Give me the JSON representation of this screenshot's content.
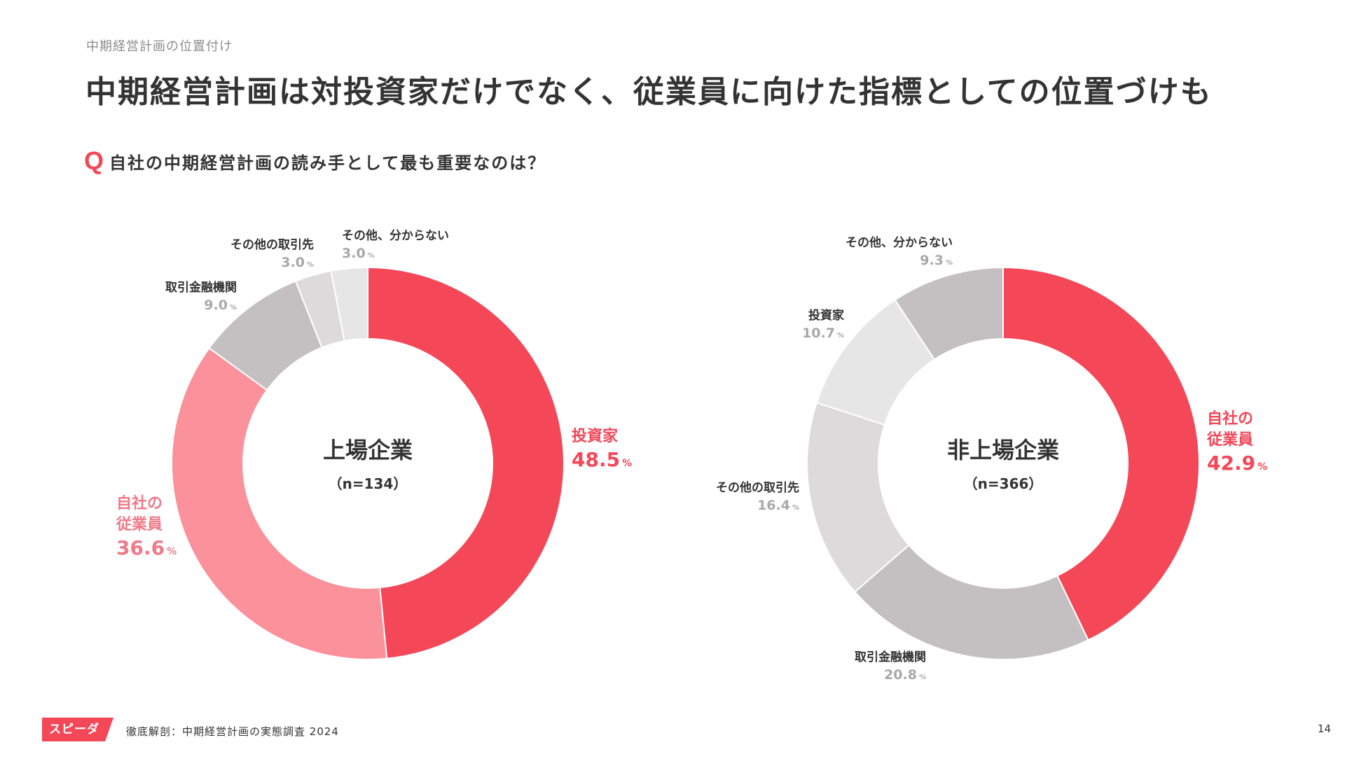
{
  "header": {
    "breadcrumb": "中期経営計画の位置付け",
    "title": "中期経営計画は対投資家だけでなく、従業員に向けた指標としての位置づけも"
  },
  "question": {
    "mark": "Q",
    "text": "自社の中期経営計画の読み手として最も重要なのは？"
  },
  "colors": {
    "primary_red": "#f44758",
    "light_red": "#fa919b",
    "gray_dark": "#c4c0c1",
    "gray_mid": "#dcdadb",
    "gray_light": "#e6e6e6",
    "label_gray": "#a8a8a8"
  },
  "chart_data": [
    {
      "type": "pie",
      "title": "上場企業",
      "subtitle": "（n=134）",
      "unit": "%",
      "slices": [
        {
          "label": "投資家",
          "value": 48.5,
          "color": "#f44758",
          "label_color": "#f44758"
        },
        {
          "label": "自社の従業員",
          "label_lines": [
            "自社の",
            "従業員"
          ],
          "value": 36.6,
          "color": "#fa919b",
          "label_color": "#f07a88"
        },
        {
          "label": "取引金融機関",
          "value": 9.0,
          "color": "#c4c0c1",
          "label_color": "#a8a8a8"
        },
        {
          "label": "その他の取引先",
          "value": 3.0,
          "color": "#dcdadb",
          "label_color": "#a8a8a8"
        },
        {
          "label": "その他、分からない",
          "value": 3.0,
          "color": "#e6e6e6",
          "label_color": "#a8a8a8"
        }
      ]
    },
    {
      "type": "pie",
      "title": "非上場企業",
      "subtitle": "（n=366）",
      "unit": "%",
      "slices": [
        {
          "label": "自社の従業員",
          "label_lines": [
            "自社の",
            "従業員"
          ],
          "value": 42.9,
          "color": "#f44758",
          "label_color": "#f44758"
        },
        {
          "label": "取引金融機関",
          "value": 20.8,
          "color": "#c4c0c1",
          "label_color": "#a8a8a8"
        },
        {
          "label": "その他の取引先",
          "value": 16.4,
          "color": "#dcdadb",
          "label_color": "#a8a8a8"
        },
        {
          "label": "投資家",
          "value": 10.7,
          "color": "#e6e6e6",
          "label_color": "#a8a8a8"
        },
        {
          "label": "その他、分からない",
          "value": 9.3,
          "color": "#c4c0c1",
          "label_color": "#a8a8a8"
        }
      ]
    }
  ],
  "footer": {
    "logo_text": "スピーダ",
    "source": "徹底解剖：中期経営計画の実態調査 2024",
    "page_number": "14"
  }
}
